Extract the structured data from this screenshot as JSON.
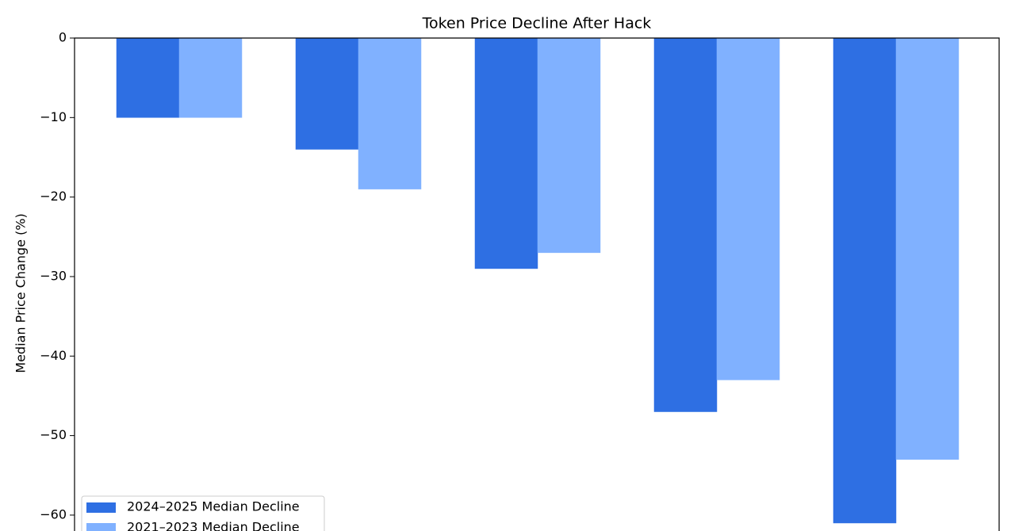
{
  "chart_data": {
    "type": "bar",
    "title": "Token Price Decline After Hack",
    "y_label": "Median Price Change (%)",
    "categories": [
      null,
      null,
      null,
      null,
      null
    ],
    "series": [
      {
        "name": "2024–2025 Median Decline",
        "color": "#2e6fe3",
        "values": [
          -10,
          -14,
          -29,
          -47,
          -61
        ]
      },
      {
        "name": "2021–2023 Median Decline",
        "color": "#80b1ff",
        "values": [
          -10,
          -19,
          -27,
          -43,
          -53
        ]
      }
    ],
    "ylim": [
      -62,
      0
    ],
    "yticks": [
      0,
      {
        "value": -10,
        "label": "−10"
      },
      {
        "value": -20,
        "label": "−20"
      },
      {
        "value": -30,
        "label": "−30"
      },
      {
        "value": -40,
        "label": "−40"
      },
      {
        "value": -50,
        "label": "−50"
      },
      {
        "value": -60,
        "label": "−60"
      }
    ],
    "legend": "lower left"
  }
}
